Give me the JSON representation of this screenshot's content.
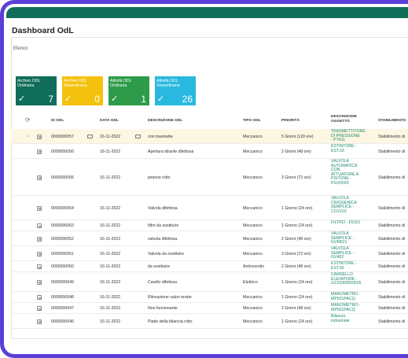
{
  "page": {
    "title": "Dashboard OdL",
    "section": "Elenco"
  },
  "tiles": [
    {
      "label": "Archivo ODL Ordinaria",
      "count": "7",
      "color": "#0f6d59"
    },
    {
      "label": "Archivo ODL Straordinaria",
      "count": "0",
      "color": "#f4c20d"
    },
    {
      "label": "Attività ODL Ordinaria",
      "count": "1",
      "color": "#2e9b4b"
    },
    {
      "label": "Attività ODL Straordinaria",
      "count": "26",
      "color": "#29b8e0"
    }
  ],
  "table": {
    "headers": {
      "id": "ID ODL",
      "date": "DATA ODL",
      "desc": "DESCRIZIONE ODL",
      "type": "TIPO ODL",
      "priority": "PRIORITÀ",
      "desc_obj": "DESCRIZIONE OGGETTO",
      "plant": "STABILIMENTO"
    },
    "rows": [
      {
        "id": "0000000057",
        "date": "16-11-2022",
        "desc": "non trasmette",
        "type": "Meccanico",
        "priority": "5 Giorni (120 ore)",
        "desc_obj": "TRASMETTITORE DI PRESSIONE - PT411",
        "plant": "Stabilimento di"
      },
      {
        "id": "0000000056",
        "date": "16-11-2022",
        "desc": "Apertura idrante difettosa",
        "type": "Meccanico",
        "priority": "2 Giorni (48 ore)",
        "desc_obj": "ESTINTORE - EST.03",
        "plant": "Stabilimento di"
      },
      {
        "id": "0000000055",
        "date": "16-11-2022",
        "desc": "pistone rotto",
        "type": "Meccanico",
        "priority": "3 Giorni (72 ore)",
        "desc_obj": "VALVOLA AUTOMATICA CON ATTUATORE A PISTONE - PGV5503",
        "plant": "Stabilimento di"
      },
      {
        "id": "0000000054",
        "date": "16-11-2022",
        "desc": "Valvola difettosa",
        "type": "Meccanico",
        "priority": "1 Giorno (24 ore)",
        "desc_obj": "VALVOLA CRIOGENICA SEMPLICE - CGV102",
        "plant": "Stabilimento di"
      },
      {
        "id": "0000000053",
        "date": "16-11-2022",
        "desc": "filtro da sostituire",
        "type": "Meccanico",
        "priority": "1 Giorno (24 ore)",
        "desc_obj": "FILTRO - F5101",
        "plant": "Stabilimento di"
      },
      {
        "id": "0000000052",
        "date": "16-11-2022",
        "desc": "valvola difettosa",
        "type": "Meccanico",
        "priority": "2 Giorni (48 ore)",
        "desc_obj": "VALVOLA SEMPLICE - GVM621",
        "plant": "Stabilimento di"
      },
      {
        "id": "0000000051",
        "date": "16-11-2022",
        "desc": "Valvola da sostituire",
        "type": "Meccanico",
        "priority": "3 Giorni (72 ore)",
        "desc_obj": "VALVOLA SEMPLICE - GV402",
        "plant": "Stabilimento di"
      },
      {
        "id": "0000000050",
        "date": "16-11-2022",
        "desc": "da sostituire",
        "type": "Antincendio",
        "priority": "2 Giorni (48 ore)",
        "desc_obj": "ESTINTORE - EST.02",
        "plant": "Stabilimento di"
      },
      {
        "id": "0000000049",
        "date": "16-11-2022",
        "desc": "Carello difettoso",
        "type": "Elettrico",
        "priority": "1 Giorno (24 ore)",
        "desc_obj": "CARRELLO ELEVATORE - G1X336W50525",
        "plant": "Stabilimento di"
      },
      {
        "id": "0000000048",
        "date": "16-11-2022",
        "desc": "Rilevazione valori errate",
        "type": "Meccanico",
        "priority": "1 Giorno (24 ore)",
        "desc_obj": "MANOMETRO - MP501PACQ",
        "plant": "Stabilimento di"
      },
      {
        "id": "0000000047",
        "date": "16-11-2022",
        "desc": "Non funzionante",
        "type": "Meccanico",
        "priority": "2 Giorni (48 ore)",
        "desc_obj": "MANOMETRO - MP501PACQ",
        "plant": "Stabilimento di"
      },
      {
        "id": "0000000046",
        "date": "16-11-2022",
        "desc": "Piatto della bilancia rotto",
        "type": "Meccanico",
        "priority": "1 Giorno (24 ore)",
        "desc_obj": "Bilancia industriale",
        "plant": "Stabilimento di"
      }
    ]
  }
}
